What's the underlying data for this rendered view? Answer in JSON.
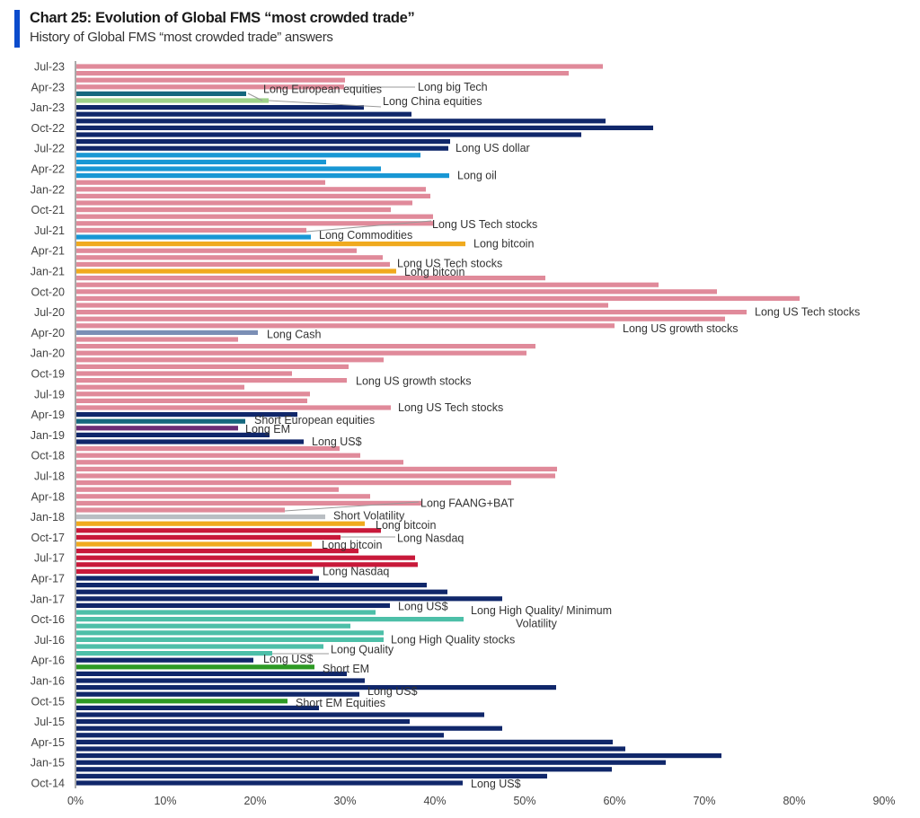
{
  "header": {
    "title": "Chart 25: Evolution of Global FMS “most crowded trade”",
    "subtitle": "History of Global FMS “most crowded trade” answers",
    "accent_color": "#0b4bcc"
  },
  "chart_data": {
    "type": "bar",
    "orientation": "horizontal",
    "title": "Chart 25: Evolution of Global FMS “most crowded trade”",
    "subtitle": "History of Global FMS “most crowded trade” answers",
    "xlabel": "",
    "ylabel": "",
    "xlim": [
      0,
      90
    ],
    "x_ticks": [
      "0%",
      "10%",
      "20%",
      "30%",
      "40%",
      "50%",
      "60%",
      "70%",
      "80%",
      "90%"
    ],
    "grid": false,
    "legend": "none (inline annotations)",
    "y_tick_labels": [
      "Jul-23",
      "Apr-23",
      "Jan-23",
      "Oct-22",
      "Jul-22",
      "Apr-22",
      "Jan-22",
      "Oct-21",
      "Jul-21",
      "Apr-21",
      "Jan-21",
      "Oct-20",
      "Jul-20",
      "Apr-20",
      "Jan-20",
      "Oct-19",
      "Jul-19",
      "Apr-19",
      "Jan-19",
      "Oct-18",
      "Jul-18",
      "Apr-18",
      "Jan-18",
      "Oct-17",
      "Jul-17",
      "Apr-17",
      "Jan-17",
      "Oct-16",
      "Jul-16",
      "Apr-16",
      "Jan-16",
      "Oct-15",
      "Jul-15",
      "Apr-15",
      "Jan-15",
      "Oct-14"
    ],
    "colors": {
      "Long US Tech / growth / big Tech / FAANG": "#e08a9a",
      "Long US dollar": "#10276a",
      "Long European equities / Short European equities": "#15687e",
      "Long China equities": "#9ed28a",
      "Long oil / Long Commodities": "#1897d4",
      "Long bitcoin": "#f0aa1e",
      "Long Cash": "#7b8fb5",
      "Long EM": "#6b2c76",
      "Short Volatility": "#b9bec3",
      "Long Nasdaq": "#c8193a",
      "Long High Quality": "#4dbfa8",
      "Short EM": "#2e9a25"
    },
    "series": [
      {
        "month": "Jul-23",
        "value": 58.7,
        "trade": "Long big Tech",
        "color": "#e08a9a"
      },
      {
        "month": "Jun-23",
        "value": 54.9,
        "trade": "Long big Tech",
        "color": "#e08a9a"
      },
      {
        "month": "May-23",
        "value": 30.0,
        "trade": "Long big Tech",
        "color": "#e08a9a"
      },
      {
        "month": "Apr-23",
        "value": 29.9,
        "trade": "Long big Tech",
        "color": "#e08a9a"
      },
      {
        "month": "Mar-23",
        "value": 19.0,
        "trade": "Long European equities",
        "color": "#15687e"
      },
      {
        "month": "Feb-23",
        "value": 21.5,
        "trade": "Long China equities",
        "color": "#9ed28a"
      },
      {
        "month": "Jan-23",
        "value": 32.1,
        "trade": "Long US dollar",
        "color": "#10276a"
      },
      {
        "month": "Dec-22",
        "value": 37.4,
        "trade": "Long US dollar",
        "color": "#10276a"
      },
      {
        "month": "Nov-22",
        "value": 59.0,
        "trade": "Long US dollar",
        "color": "#10276a"
      },
      {
        "month": "Oct-22",
        "value": 64.3,
        "trade": "Long US dollar",
        "color": "#10276a"
      },
      {
        "month": "Sep-22",
        "value": 56.3,
        "trade": "Long US dollar",
        "color": "#10276a"
      },
      {
        "month": "Aug-22",
        "value": 41.7,
        "trade": "Long US dollar",
        "color": "#10276a"
      },
      {
        "month": "Jul-22",
        "value": 41.5,
        "trade": "Long US dollar",
        "color": "#10276a"
      },
      {
        "month": "Jun-22",
        "value": 38.4,
        "trade": "Long oil",
        "color": "#1897d4"
      },
      {
        "month": "May-22",
        "value": 27.9,
        "trade": "Long oil",
        "color": "#1897d4"
      },
      {
        "month": "Apr-22",
        "value": 34.0,
        "trade": "Long oil",
        "color": "#1897d4"
      },
      {
        "month": "Mar-22",
        "value": 41.6,
        "trade": "Long oil",
        "color": "#1897d4"
      },
      {
        "month": "Feb-22",
        "value": 27.8,
        "trade": "Long US Tech stocks",
        "color": "#e08a9a"
      },
      {
        "month": "Jan-22",
        "value": 39.0,
        "trade": "Long US Tech stocks",
        "color": "#e08a9a"
      },
      {
        "month": "Dec-21",
        "value": 39.5,
        "trade": "Long US Tech stocks",
        "color": "#e08a9a"
      },
      {
        "month": "Nov-21",
        "value": 37.5,
        "trade": "Long US Tech stocks",
        "color": "#e08a9a"
      },
      {
        "month": "Oct-21",
        "value": 35.1,
        "trade": "Long US Tech stocks",
        "color": "#e08a9a"
      },
      {
        "month": "Sep-21",
        "value": 39.8,
        "trade": "Long US Tech stocks",
        "color": "#e08a9a"
      },
      {
        "month": "Aug-21",
        "value": 39.8,
        "trade": "Long US Tech stocks",
        "color": "#e08a9a"
      },
      {
        "month": "Jul-21",
        "value": 25.7,
        "trade": "Long US Tech stocks",
        "color": "#e08a9a"
      },
      {
        "month": "Jun-21",
        "value": 26.2,
        "trade": "Long Commodities",
        "color": "#1897d4"
      },
      {
        "month": "May-21",
        "value": 43.4,
        "trade": "Long bitcoin",
        "color": "#f0aa1e"
      },
      {
        "month": "Apr-21",
        "value": 31.3,
        "trade": "Long US Tech stocks",
        "color": "#e08a9a"
      },
      {
        "month": "Mar-21",
        "value": 34.2,
        "trade": "Long US Tech stocks",
        "color": "#e08a9a"
      },
      {
        "month": "Feb-21",
        "value": 35.0,
        "trade": "Long US Tech stocks",
        "color": "#e08a9a"
      },
      {
        "month": "Jan-21",
        "value": 35.7,
        "trade": "Long bitcoin",
        "color": "#f0aa1e"
      },
      {
        "month": "Dec-20",
        "value": 52.3,
        "trade": "Long US Tech stocks",
        "color": "#e08a9a"
      },
      {
        "month": "Nov-20",
        "value": 64.9,
        "trade": "Long US Tech stocks",
        "color": "#e08a9a"
      },
      {
        "month": "Oct-20",
        "value": 71.4,
        "trade": "Long US Tech stocks",
        "color": "#e08a9a"
      },
      {
        "month": "Sep-20",
        "value": 80.6,
        "trade": "Long US Tech stocks",
        "color": "#e08a9a"
      },
      {
        "month": "Aug-20",
        "value": 59.3,
        "trade": "Long US Tech stocks",
        "color": "#e08a9a"
      },
      {
        "month": "Jul-20",
        "value": 74.7,
        "trade": "Long US Tech stocks",
        "color": "#e08a9a"
      },
      {
        "month": "Jun-20",
        "value": 72.3,
        "trade": "Long US growth stocks",
        "color": "#e08a9a"
      },
      {
        "month": "May-20",
        "value": 60.0,
        "trade": "Long US growth stocks",
        "color": "#e08a9a"
      },
      {
        "month": "Apr-20",
        "value": 20.3,
        "trade": "Long Cash",
        "color": "#7b8fb5"
      },
      {
        "month": "Mar-20",
        "value": 18.1,
        "trade": "Long US growth stocks",
        "color": "#e08a9a"
      },
      {
        "month": "Feb-20",
        "value": 51.2,
        "trade": "Long US growth stocks",
        "color": "#e08a9a"
      },
      {
        "month": "Jan-20",
        "value": 50.2,
        "trade": "Long US growth stocks",
        "color": "#e08a9a"
      },
      {
        "month": "Dec-19",
        "value": 34.3,
        "trade": "Long US growth stocks",
        "color": "#e08a9a"
      },
      {
        "month": "Nov-19",
        "value": 30.4,
        "trade": "Long US growth stocks",
        "color": "#e08a9a"
      },
      {
        "month": "Oct-19",
        "value": 24.1,
        "trade": "Long US growth stocks",
        "color": "#e08a9a"
      },
      {
        "month": "Sep-19",
        "value": 30.2,
        "trade": "Long US growth stocks",
        "color": "#e08a9a"
      },
      {
        "month": "Aug-19",
        "value": 18.8,
        "trade": "Long US Tech stocks",
        "color": "#e08a9a"
      },
      {
        "month": "Jul-19",
        "value": 26.1,
        "trade": "Long US Tech stocks",
        "color": "#e08a9a"
      },
      {
        "month": "Jun-19",
        "value": 25.8,
        "trade": "Long US Tech stocks",
        "color": "#e08a9a"
      },
      {
        "month": "May-19",
        "value": 35.1,
        "trade": "Long US Tech stocks",
        "color": "#e08a9a"
      },
      {
        "month": "Apr-19",
        "value": 24.7,
        "trade": "Long US$",
        "color": "#10276a"
      },
      {
        "month": "Mar-19",
        "value": 18.9,
        "trade": "Short European equities",
        "color": "#15687e"
      },
      {
        "month": "Feb-19",
        "value": 18.1,
        "trade": "Long EM",
        "color": "#6b2c76"
      },
      {
        "month": "Jan-19",
        "value": 21.6,
        "trade": "Long US$",
        "color": "#10276a"
      },
      {
        "month": "Dec-18",
        "value": 25.4,
        "trade": "Long US$",
        "color": "#10276a"
      },
      {
        "month": "Nov-18",
        "value": 29.4,
        "trade": "Long FAANG+BAT",
        "color": "#e08a9a"
      },
      {
        "month": "Oct-18",
        "value": 31.7,
        "trade": "Long FAANG+BAT",
        "color": "#e08a9a"
      },
      {
        "month": "Sep-18",
        "value": 36.5,
        "trade": "Long FAANG+BAT",
        "color": "#e08a9a"
      },
      {
        "month": "Aug-18",
        "value": 53.6,
        "trade": "Long FAANG+BAT",
        "color": "#e08a9a"
      },
      {
        "month": "Jul-18",
        "value": 53.4,
        "trade": "Long FAANG+BAT",
        "color": "#e08a9a"
      },
      {
        "month": "Jun-18",
        "value": 48.5,
        "trade": "Long FAANG+BAT",
        "color": "#e08a9a"
      },
      {
        "month": "May-18",
        "value": 29.3,
        "trade": "Long FAANG+BAT",
        "color": "#e08a9a"
      },
      {
        "month": "Apr-18",
        "value": 32.8,
        "trade": "Long FAANG+BAT",
        "color": "#e08a9a"
      },
      {
        "month": "Mar-18",
        "value": 38.5,
        "trade": "Long FAANG+BAT",
        "color": "#e08a9a"
      },
      {
        "month": "Feb-18",
        "value": 23.3,
        "trade": "Long FAANG+BAT",
        "color": "#e08a9a"
      },
      {
        "month": "Jan-18",
        "value": 27.8,
        "trade": "Short Volatility",
        "color": "#b9bec3"
      },
      {
        "month": "Dec-17",
        "value": 32.2,
        "trade": "Long bitcoin",
        "color": "#f0aa1e"
      },
      {
        "month": "Nov-17",
        "value": 34.0,
        "trade": "Long Nasdaq",
        "color": "#c8193a"
      },
      {
        "month": "Oct-17",
        "value": 29.5,
        "trade": "Long Nasdaq",
        "color": "#c8193a"
      },
      {
        "month": "Sep-17",
        "value": 26.3,
        "trade": "Long bitcoin",
        "color": "#f0aa1e"
      },
      {
        "month": "Aug-17",
        "value": 31.5,
        "trade": "Long Nasdaq",
        "color": "#c8193a"
      },
      {
        "month": "Jul-17",
        "value": 37.8,
        "trade": "Long Nasdaq",
        "color": "#c8193a"
      },
      {
        "month": "Jun-17",
        "value": 38.1,
        "trade": "Long Nasdaq",
        "color": "#c8193a"
      },
      {
        "month": "May-17",
        "value": 26.4,
        "trade": "Long Nasdaq",
        "color": "#c8193a"
      },
      {
        "month": "Apr-17",
        "value": 27.1,
        "trade": "Long US$",
        "color": "#10276a"
      },
      {
        "month": "Mar-17",
        "value": 39.1,
        "trade": "Long US$",
        "color": "#10276a"
      },
      {
        "month": "Feb-17",
        "value": 41.4,
        "trade": "Long US$",
        "color": "#10276a"
      },
      {
        "month": "Jan-17",
        "value": 47.5,
        "trade": "Long US$",
        "color": "#10276a"
      },
      {
        "month": "Dec-16",
        "value": 35.0,
        "trade": "Long US$",
        "color": "#10276a"
      },
      {
        "month": "Nov-16",
        "value": 33.4,
        "trade": "Long High Quality/ Minimum Volatility",
        "color": "#4dbfa8"
      },
      {
        "month": "Oct-16",
        "value": 43.2,
        "trade": "Long High Quality/ Minimum Volatility",
        "color": "#4dbfa8"
      },
      {
        "month": "Sep-16",
        "value": 30.6,
        "trade": "Long High Quality stocks",
        "color": "#4dbfa8"
      },
      {
        "month": "Aug-16",
        "value": 34.3,
        "trade": "Long High Quality stocks",
        "color": "#4dbfa8"
      },
      {
        "month": "Jul-16",
        "value": 34.3,
        "trade": "Long High Quality stocks",
        "color": "#4dbfa8"
      },
      {
        "month": "Jun-16",
        "value": 27.6,
        "trade": "Long Quality",
        "color": "#4dbfa8"
      },
      {
        "month": "May-16",
        "value": 21.9,
        "trade": "Long Quality",
        "color": "#4dbfa8"
      },
      {
        "month": "Apr-16",
        "value": 19.8,
        "trade": "Long US$",
        "color": "#10276a"
      },
      {
        "month": "Mar-16",
        "value": 26.6,
        "trade": "Short EM",
        "color": "#2e9a25"
      },
      {
        "month": "Feb-16",
        "value": 30.2,
        "trade": "Long US$",
        "color": "#10276a"
      },
      {
        "month": "Jan-16",
        "value": 32.2,
        "trade": "Long US$",
        "color": "#10276a"
      },
      {
        "month": "Dec-15",
        "value": 53.5,
        "trade": "Long US$",
        "color": "#10276a"
      },
      {
        "month": "Nov-15",
        "value": 31.6,
        "trade": "Long US$",
        "color": "#10276a"
      },
      {
        "month": "Oct-15",
        "value": 23.6,
        "trade": "Short EM Equities",
        "color": "#2e9a25"
      },
      {
        "month": "Sep-15",
        "value": 27.1,
        "trade": "Long US$",
        "color": "#10276a"
      },
      {
        "month": "Aug-15",
        "value": 45.5,
        "trade": "Long US$",
        "color": "#10276a"
      },
      {
        "month": "Jul-15",
        "value": 37.2,
        "trade": "Long US$",
        "color": "#10276a"
      },
      {
        "month": "Jun-15",
        "value": 47.5,
        "trade": "Long US$",
        "color": "#10276a"
      },
      {
        "month": "May-15",
        "value": 41.0,
        "trade": "Long US$",
        "color": "#10276a"
      },
      {
        "month": "Apr-15",
        "value": 59.8,
        "trade": "Long US$",
        "color": "#10276a"
      },
      {
        "month": "Mar-15",
        "value": 61.2,
        "trade": "Long US$",
        "color": "#10276a"
      },
      {
        "month": "Feb-15",
        "value": 71.9,
        "trade": "Long US$",
        "color": "#10276a"
      },
      {
        "month": "Jan-15",
        "value": 65.7,
        "trade": "Long US$",
        "color": "#10276a"
      },
      {
        "month": "Dec-14",
        "value": 59.7,
        "trade": "Long US$",
        "color": "#10276a"
      },
      {
        "month": "Nov-14",
        "value": 52.5,
        "trade": "Long US$",
        "color": "#10276a"
      },
      {
        "month": "Oct-14",
        "value": 43.1,
        "trade": "Long US$",
        "color": "#10276a"
      }
    ],
    "annotations": [
      {
        "text": "Long big Tech",
        "month": "Apr-23"
      },
      {
        "text": "Long European equities",
        "month": "Mar-23"
      },
      {
        "text": "Long China equities",
        "month": "Feb-23"
      },
      {
        "text": "Long US dollar",
        "month": "Jul-22"
      },
      {
        "text": "Long oil",
        "month": "Mar-22"
      },
      {
        "text": "Long US Tech stocks",
        "month": "Aug-21"
      },
      {
        "text": "Long Commodities",
        "month": "Jun-21"
      },
      {
        "text": "Long bitcoin",
        "month": "May-21"
      },
      {
        "text": "Long US Tech stocks",
        "month": "Feb-21"
      },
      {
        "text": "Long bitcoin",
        "month": "Jan-21"
      },
      {
        "text": "Long US Tech stocks",
        "month": "Jul-20"
      },
      {
        "text": "Long US growth stocks",
        "month": "May-20"
      },
      {
        "text": "Long Cash",
        "month": "Apr-20"
      },
      {
        "text": "Long US growth stocks",
        "month": "Sep-19"
      },
      {
        "text": "Long US Tech stocks",
        "month": "May-19"
      },
      {
        "text": "Short European equities",
        "month": "Mar-19"
      },
      {
        "text": "Long EM",
        "month": "Feb-19"
      },
      {
        "text": "Long US$",
        "month": "Dec-18"
      },
      {
        "text": "Long FAANG+BAT",
        "month": "Mar-18"
      },
      {
        "text": "Short Volatility",
        "month": "Jan-18"
      },
      {
        "text": "Long bitcoin",
        "month": "Dec-17"
      },
      {
        "text": "Long Nasdaq",
        "month": "Oct-17"
      },
      {
        "text": "Long bitcoin",
        "month": "Sep-17"
      },
      {
        "text": "Long Nasdaq",
        "month": "May-17"
      },
      {
        "text": "Long US$",
        "month": "Dec-16"
      },
      {
        "text": "Long High Quality/ Minimum",
        "month": "Nov-16"
      },
      {
        "text": "Volatility",
        "month": "Oct-16"
      },
      {
        "text": "Long High Quality stocks",
        "month": "Jul-16"
      },
      {
        "text": "Long Quality",
        "month": "May-16"
      },
      {
        "text": "Long US$",
        "month": "Apr-16"
      },
      {
        "text": "Short EM",
        "month": "Mar-16"
      },
      {
        "text": "Long US$",
        "month": "Nov-15"
      },
      {
        "text": "Short EM Equities",
        "month": "Oct-15"
      },
      {
        "text": "Long US$",
        "month": "Oct-14"
      }
    ]
  }
}
